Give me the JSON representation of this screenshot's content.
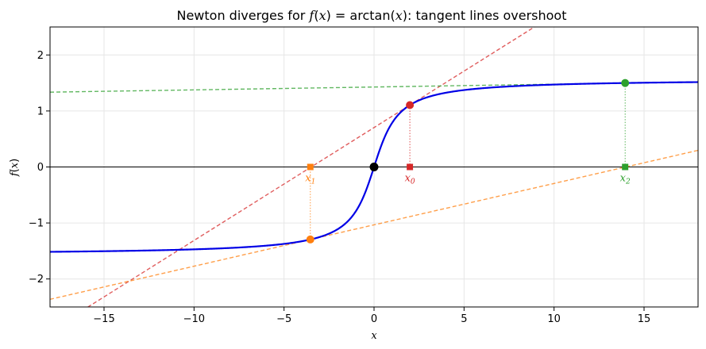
{
  "chart_data": {
    "type": "line",
    "title_parts": {
      "prefix": "Newton diverges for ",
      "f_lhs": "f",
      "x_in": "x",
      "eq": " = arctan(",
      "x_in2": "x",
      "suffix": "): tangent lines overshoot"
    },
    "title": "Newton diverges for f(x) = arctan(x): tangent lines overshoot",
    "xlabel": "x",
    "ylabel_parts": {
      "f": "f",
      "x": "x"
    },
    "ylabel": "f(x)",
    "xlim": [
      -18,
      18
    ],
    "ylim": [
      -2.5,
      2.5
    ],
    "xticks": [
      -15,
      -10,
      -5,
      0,
      5,
      10,
      15
    ],
    "xtick_labels": [
      "−15",
      "−10",
      "−5",
      "0",
      "5",
      "10",
      "15"
    ],
    "yticks": [
      -2,
      -1,
      0,
      1,
      2
    ],
    "ytick_labels": [
      "−2",
      "−1",
      "0",
      "1",
      "2"
    ],
    "grid": true,
    "colors": {
      "curve": "#0000e6",
      "x0": "#d62728",
      "x1": "#ff7f0e",
      "x2": "#2ca02c",
      "root": "#000000",
      "zero_line": "#000000",
      "grid": "#e6e6e6"
    },
    "series": [
      {
        "function": "arctan(x)",
        "style": "solid"
      }
    ],
    "iterates": [
      {
        "key": "x0",
        "label_main": "x",
        "label_sub": "0",
        "x": 1.99,
        "y": 1.105
      },
      {
        "key": "x1",
        "label_main": "x",
        "label_sub": "1",
        "x": -3.54,
        "y": -1.295
      },
      {
        "key": "x2",
        "label_main": "x",
        "label_sub": "2",
        "x": 13.95,
        "y": 1.499
      }
    ],
    "root": {
      "x": 0,
      "y": 0
    }
  }
}
